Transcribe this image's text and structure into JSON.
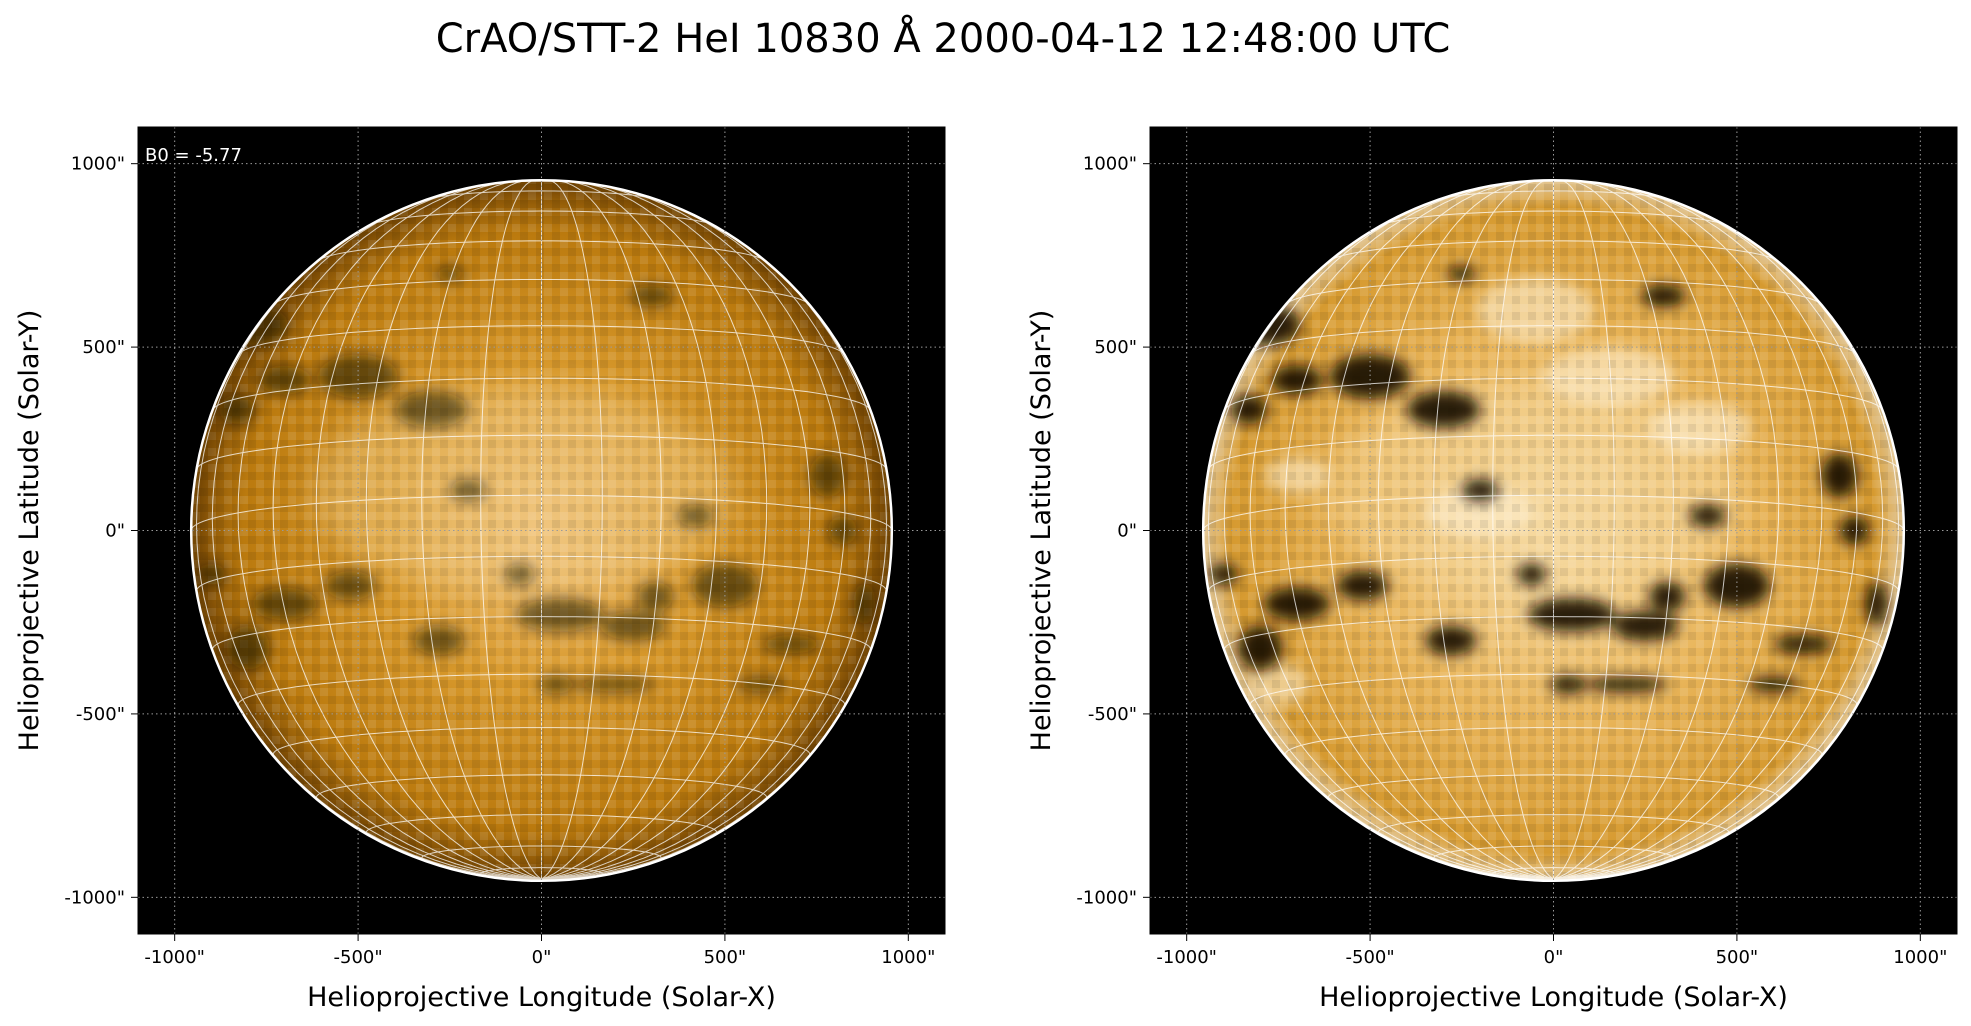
{
  "figure": {
    "title": "CrAO/STT-2 HeI 10830 Å 2000-04-12 12:48:00 UTC"
  },
  "panels": [
    {
      "id": "left",
      "annotation": "B0 = -5.77",
      "xlabel": "Helioprojective Longitude (Solar-X)",
      "ylabel": "Helioprojective Latitude (Solar-Y)",
      "x_ticks": [
        "-1000\"",
        "-500\"",
        "0\"",
        "500\"",
        "1000\""
      ],
      "y_ticks": [
        "1000\"",
        "500\"",
        "0\"",
        "-500\"",
        "-1000\""
      ],
      "tick_values": [
        -1000,
        -500,
        0,
        500,
        1000
      ],
      "axis_range_arcsec": [
        -1100,
        1100
      ],
      "solar_radius_arcsec": 955,
      "b0_deg": -5.77,
      "colormap": "sdo-aia-1600 style (black → orange → white)",
      "contrast": "normal"
    },
    {
      "id": "right",
      "annotation": "",
      "xlabel": "Helioprojective Longitude (Solar-X)",
      "ylabel": "Helioprojective Latitude (Solar-Y)",
      "x_ticks": [
        "-1000\"",
        "-500\"",
        "0\"",
        "500\"",
        "1000\""
      ],
      "y_ticks": [
        "1000\"",
        "500\"",
        "0\"",
        "-500\"",
        "-1000\""
      ],
      "tick_values": [
        -1000,
        -500,
        0,
        500,
        1000
      ],
      "axis_range_arcsec": [
        -1100,
        1100
      ],
      "solar_radius_arcsec": 955,
      "b0_deg": -5.77,
      "colormap": "sdo-aia-1600 style (black → orange → white)",
      "contrast": "enhanced"
    }
  ],
  "colors": {
    "background": "#000000",
    "disk_base": "#c98410",
    "disk_bright": "#f1c880",
    "dark_filament": "#1a0c02",
    "grid_line": "#ffffff",
    "limb": "#ffffff",
    "axis_grid": "#9a9a9a"
  },
  "features": {
    "dark_regions": [
      {
        "x": -780,
        "y": 560,
        "rx": 90,
        "ry": 55
      },
      {
        "x": -700,
        "y": 410,
        "rx": 70,
        "ry": 40
      },
      {
        "x": -500,
        "y": 420,
        "rx": 110,
        "ry": 60
      },
      {
        "x": -300,
        "y": 330,
        "rx": 100,
        "ry": 50
      },
      {
        "x": -830,
        "y": 330,
        "rx": 50,
        "ry": 40
      },
      {
        "x": -250,
        "y": 700,
        "rx": 40,
        "ry": 20
      },
      {
        "x": 780,
        "y": 150,
        "rx": 50,
        "ry": 60
      },
      {
        "x": 820,
        "y": 0,
        "rx": 40,
        "ry": 40
      },
      {
        "x": -700,
        "y": -200,
        "rx": 90,
        "ry": 45
      },
      {
        "x": -800,
        "y": -320,
        "rx": 60,
        "ry": 60
      },
      {
        "x": -900,
        "y": -120,
        "rx": 40,
        "ry": 30
      },
      {
        "x": -520,
        "y": -150,
        "rx": 70,
        "ry": 40
      },
      {
        "x": 500,
        "y": -150,
        "rx": 90,
        "ry": 60
      },
      {
        "x": 310,
        "y": -180,
        "rx": 50,
        "ry": 40
      },
      {
        "x": 50,
        "y": -230,
        "rx": 120,
        "ry": 45
      },
      {
        "x": 250,
        "y": -260,
        "rx": 90,
        "ry": 40
      },
      {
        "x": 680,
        "y": -310,
        "rx": 80,
        "ry": 25
      },
      {
        "x": 200,
        "y": -420,
        "rx": 110,
        "ry": 20
      },
      {
        "x": 600,
        "y": -420,
        "rx": 70,
        "ry": 20
      },
      {
        "x": -280,
        "y": -300,
        "rx": 70,
        "ry": 40
      },
      {
        "x": 40,
        "y": -420,
        "rx": 50,
        "ry": 25
      },
      {
        "x": 420,
        "y": 40,
        "rx": 50,
        "ry": 30
      },
      {
        "x": -60,
        "y": -120,
        "rx": 40,
        "ry": 30
      },
      {
        "x": 300,
        "y": 640,
        "rx": 60,
        "ry": 30
      },
      {
        "x": 880,
        "y": -200,
        "rx": 30,
        "ry": 60
      },
      {
        "x": -200,
        "y": 110,
        "rx": 50,
        "ry": 30
      }
    ]
  }
}
